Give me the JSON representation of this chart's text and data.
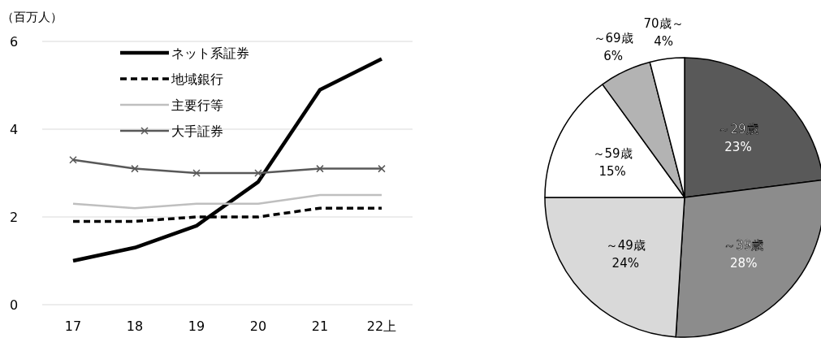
{
  "chart_data": [
    {
      "type": "line",
      "ylabel": "（百万人）",
      "categories": [
        "17",
        "18",
        "19",
        "20",
        "21",
        "22上"
      ],
      "ylim": [
        0,
        6
      ],
      "yticks": [
        0,
        2,
        4,
        6
      ],
      "grid": "y",
      "legend": "top left",
      "series": [
        {
          "name": "ネット系証券",
          "color": "#000000",
          "values": [
            1.0,
            1.3,
            1.8,
            2.8,
            4.9,
            5.6
          ]
        },
        {
          "name": "地域銀行",
          "color": "#000000",
          "line_style": "dashed",
          "values": [
            1.9,
            1.9,
            2.0,
            2.0,
            2.2,
            2.2
          ]
        },
        {
          "name": "主要行等",
          "color": "#bfbfbf",
          "values": [
            2.3,
            2.2,
            2.3,
            2.3,
            2.5,
            2.5
          ]
        },
        {
          "name": "大手証券",
          "color": "#595959",
          "marker": "cross",
          "values": [
            3.3,
            3.1,
            3.0,
            3.0,
            3.1,
            3.1
          ]
        }
      ]
    },
    {
      "type": "pie",
      "categories": [
        "～29歳",
        "～39歳",
        "～49歳",
        "～59歳",
        "～69歳",
        "70歳～"
      ],
      "values": [
        23,
        28,
        24,
        15,
        6,
        4
      ],
      "value_labels": [
        "23%",
        "28%",
        "24%",
        "15%",
        "6%",
        "4%"
      ],
      "colors": [
        "#595959",
        "#8c8c8c",
        "#d9d9d9",
        "#ffffff",
        "#b3b3b3",
        "#ffffff"
      ]
    }
  ]
}
